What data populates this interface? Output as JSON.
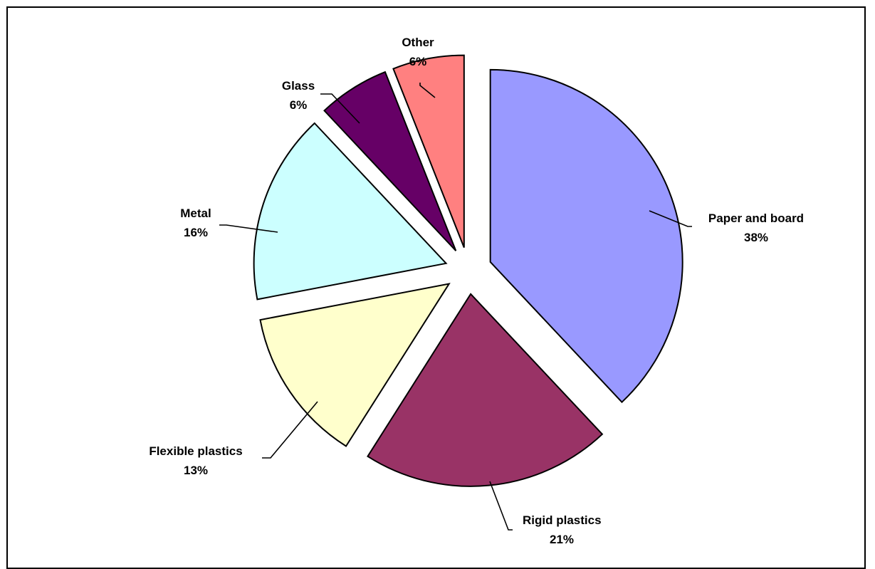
{
  "chart_data": {
    "type": "pie",
    "exploded": true,
    "slices": [
      {
        "label": "Paper and board",
        "value": 38,
        "value_label": "38%",
        "color": "#9999ff"
      },
      {
        "label": "Rigid plastics",
        "value": 21,
        "value_label": "21%",
        "color": "#993366"
      },
      {
        "label": "Flexible plastics",
        "value": 13,
        "value_label": "13%",
        "color": "#ffffcc"
      },
      {
        "label": "Metal",
        "value": 16,
        "value_label": "16%",
        "color": "#ccffff"
      },
      {
        "label": "Glass",
        "value": 6,
        "value_label": "6%",
        "color": "#660066"
      },
      {
        "label": "Other",
        "value": 6,
        "value_label": "6%",
        "color": "#ff8080"
      }
    ],
    "legend": "none",
    "data_labels": "category name and percentage with leader lines"
  }
}
